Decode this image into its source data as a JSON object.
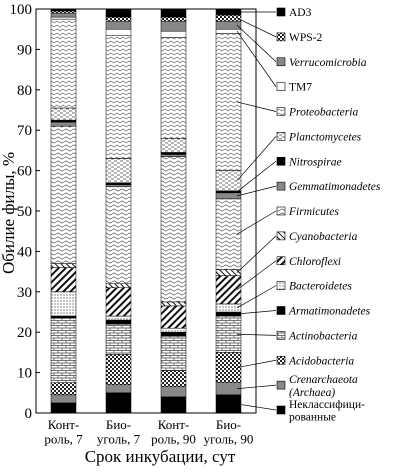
{
  "chart_data": {
    "type": "stacked-bar",
    "y_label": "Обилие филы, %",
    "x_label": "Срок инкубации, сут",
    "categories": [
      "Конт-\nроль, 7",
      "Био-\nуголь, 7",
      "Конт-\nроль, 90",
      "Био-\nуголь, 90"
    ],
    "ylim": [
      0,
      100
    ],
    "yticks": [
      0,
      10,
      20,
      30,
      40,
      50,
      60,
      70,
      80,
      90,
      100
    ],
    "series": [
      {
        "name": "Неклассифици-\nрованные",
        "pattern": "black",
        "italic": false,
        "values": [
          2.5,
          5,
          4,
          4.5
        ]
      },
      {
        "name": "Crenarchaeota\n(Archaea)",
        "pattern": "gray",
        "italic": true,
        "values": [
          2,
          2,
          2.5,
          3
        ]
      },
      {
        "name": "Acidobacteria",
        "pattern": "checker",
        "italic": true,
        "values": [
          3,
          7.5,
          4,
          7.5
        ]
      },
      {
        "name": "Actinobacteria",
        "pattern": "brick",
        "italic": true,
        "values": [
          16,
          7.5,
          8.5,
          9
        ]
      },
      {
        "name": "Armatimonadetes",
        "pattern": "black",
        "italic": true,
        "values": [
          0.5,
          1,
          1,
          1
        ]
      },
      {
        "name": "Bacteroidetes",
        "pattern": "dots",
        "italic": true,
        "values": [
          6,
          1,
          1,
          2
        ]
      },
      {
        "name": "Chloroflexi",
        "pattern": "hatch",
        "italic": true,
        "values": [
          6,
          7,
          5.5,
          7
        ]
      },
      {
        "name": "Cyanobacteria",
        "pattern": "hatch2",
        "italic": true,
        "values": [
          1,
          1,
          1,
          1.5
        ]
      },
      {
        "name": "Firmicutes",
        "pattern": "wave",
        "italic": true,
        "values": [
          34,
          24,
          36,
          17.5
        ]
      },
      {
        "name": "Gemmatimonadetes",
        "pattern": "gray",
        "italic": true,
        "values": [
          1,
          0.5,
          0.5,
          1.5
        ]
      },
      {
        "name": "Nitrospirae",
        "pattern": "black",
        "italic": true,
        "values": [
          0.5,
          0.5,
          0.5,
          0.5
        ]
      },
      {
        "name": "Planctomycetes",
        "pattern": "dash",
        "italic": true,
        "values": [
          3,
          6,
          3.5,
          5
        ]
      },
      {
        "name": "Proteobacteria",
        "pattern": "zigzag",
        "italic": true,
        "values": [
          22,
          30.5,
          25,
          34
        ]
      },
      {
        "name": "TM7",
        "pattern": "white",
        "italic": false,
        "values": [
          0.5,
          1.5,
          1.5,
          1
        ]
      },
      {
        "name": "Verrucomicrobia",
        "pattern": "gray",
        "italic": true,
        "values": [
          1,
          2,
          2.5,
          2
        ]
      },
      {
        "name": "WPS-2",
        "pattern": "checker",
        "italic": false,
        "values": [
          0.5,
          1,
          1,
          1.5
        ]
      },
      {
        "name": "AD3",
        "pattern": "black",
        "italic": false,
        "values": [
          0.5,
          2,
          2,
          1.5
        ]
      }
    ]
  }
}
